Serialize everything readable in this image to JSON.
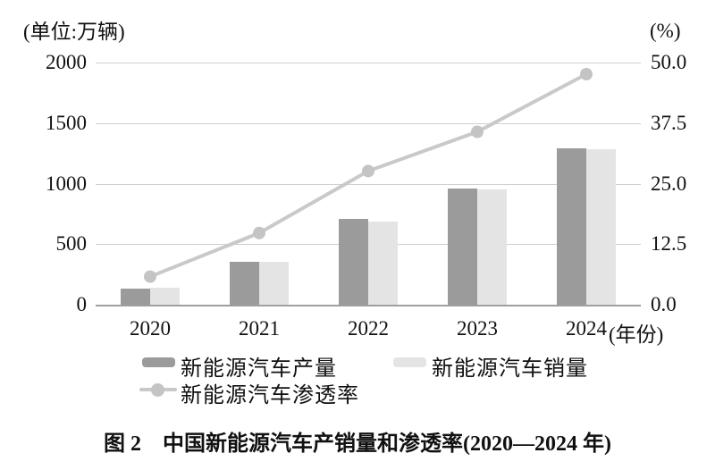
{
  "chart": {
    "unit_left": "(单位:万辆)",
    "unit_right": "(%)",
    "x_suffix": "(年份)",
    "caption": "图 2　中国新能源汽车产销量和渗透率(2020—2024 年)"
  },
  "legend": {
    "production": "新能源汽车产量",
    "sales": "新能源汽车销量",
    "penetration": "新能源汽车渗透率"
  },
  "colors": {
    "production_bar": "#9b9b9b",
    "sales_bar": "#e4e4e4",
    "penetration_line": "#c9c9c9",
    "penetration_marker": "#c4c4c4",
    "gridline": "#d0d0d0",
    "baseline": "#9f9f9f"
  },
  "chart_data": {
    "type": "bar",
    "title": "中国新能源汽车产销量和渗透率(2020—2024 年)",
    "categories": [
      "2020",
      "2021",
      "2022",
      "2023",
      "2024"
    ],
    "series": [
      {
        "name": "新能源汽车产量",
        "type": "bar",
        "axis": "left",
        "values": [
          136.6,
          354.5,
          705.8,
          958.7,
          1288.8
        ]
      },
      {
        "name": "新能源汽车销量",
        "type": "bar",
        "axis": "left",
        "values": [
          136.7,
          352.1,
          688.7,
          949.5,
          1286.6
        ]
      },
      {
        "name": "新能源汽车渗透率",
        "type": "line",
        "axis": "right",
        "values": [
          5.8,
          14.8,
          27.6,
          35.7,
          47.6
        ]
      }
    ],
    "left_axis": {
      "label": "(单位:万辆)",
      "min": 0,
      "max": 2000,
      "step": 500,
      "ticks": [
        "2000",
        "1500",
        "1000",
        "500",
        "0"
      ]
    },
    "right_axis": {
      "label": "(%)",
      "min": 0,
      "max": 50,
      "step": 12.5,
      "ticks": [
        "50.0",
        "37.5",
        "25.0",
        "12.5",
        "0.0"
      ]
    },
    "xlabel": "(年份)",
    "grid": true,
    "legend_position": "bottom"
  }
}
